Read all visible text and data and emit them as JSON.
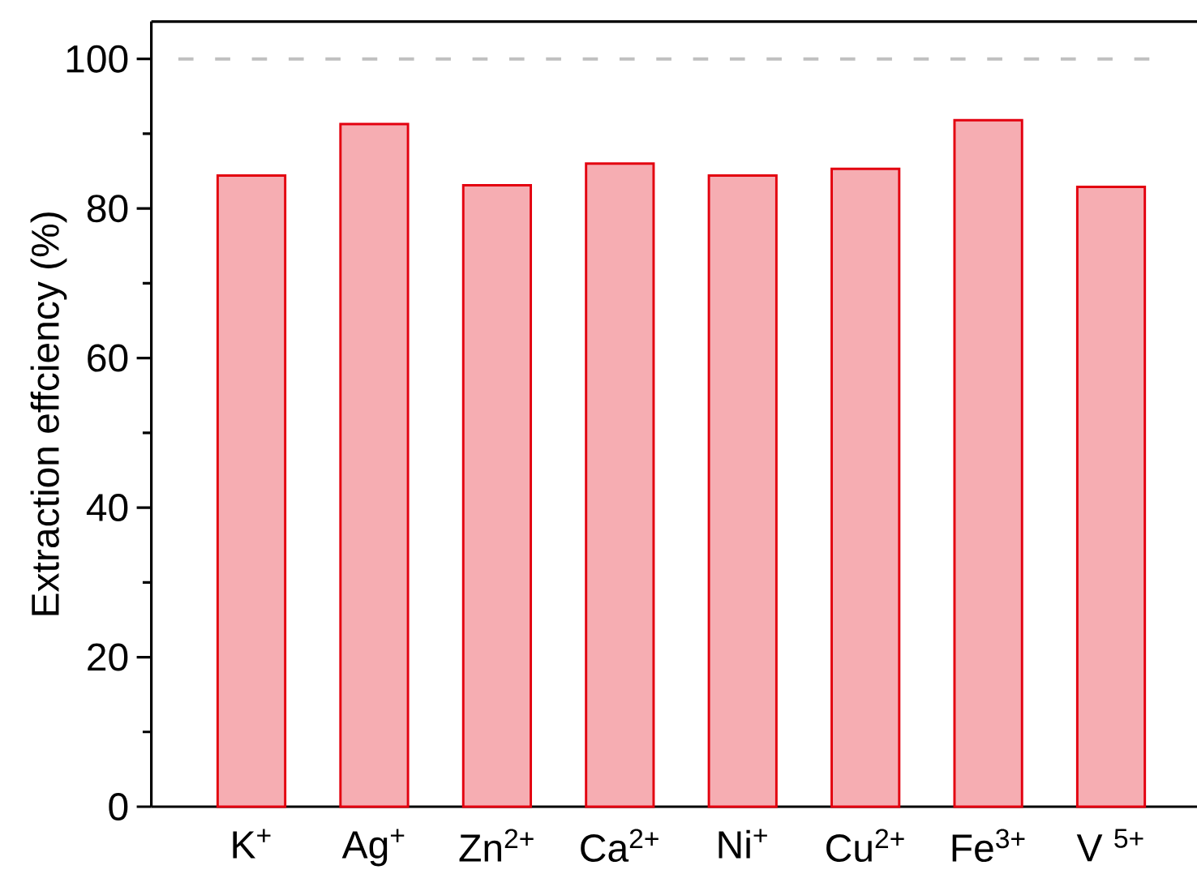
{
  "chart_data": {
    "type": "bar",
    "ylabel": "Extraction effciency (%)",
    "categories": [
      "K$^{+}$",
      "Ag$^{+}$",
      "Zn$^{2+}$",
      "Ca$^{2+}$",
      "Ni$^{+}$",
      "Cu$^{2+}$",
      "Fe$^{3+}$",
      "V $^{5+}$"
    ],
    "values": [
      84.4,
      91.3,
      83.1,
      86.0,
      84.4,
      85.3,
      91.8,
      82.9
    ],
    "color": "#e3000f",
    "ylim": [
      0,
      105
    ],
    "yticks": [
      0,
      {
        "value": 10,
        "label": null
      },
      20,
      {
        "value": 30,
        "label": null
      },
      40,
      {
        "value": 50,
        "label": null
      },
      60,
      {
        "value": 70,
        "label": null
      },
      80,
      {
        "value": 90,
        "label": null
      },
      100
    ],
    "ref_lines": [
      {
        "axis": "y",
        "value": 100,
        "color": "#c0c0c0",
        "line_style": "dashed"
      }
    ]
  }
}
